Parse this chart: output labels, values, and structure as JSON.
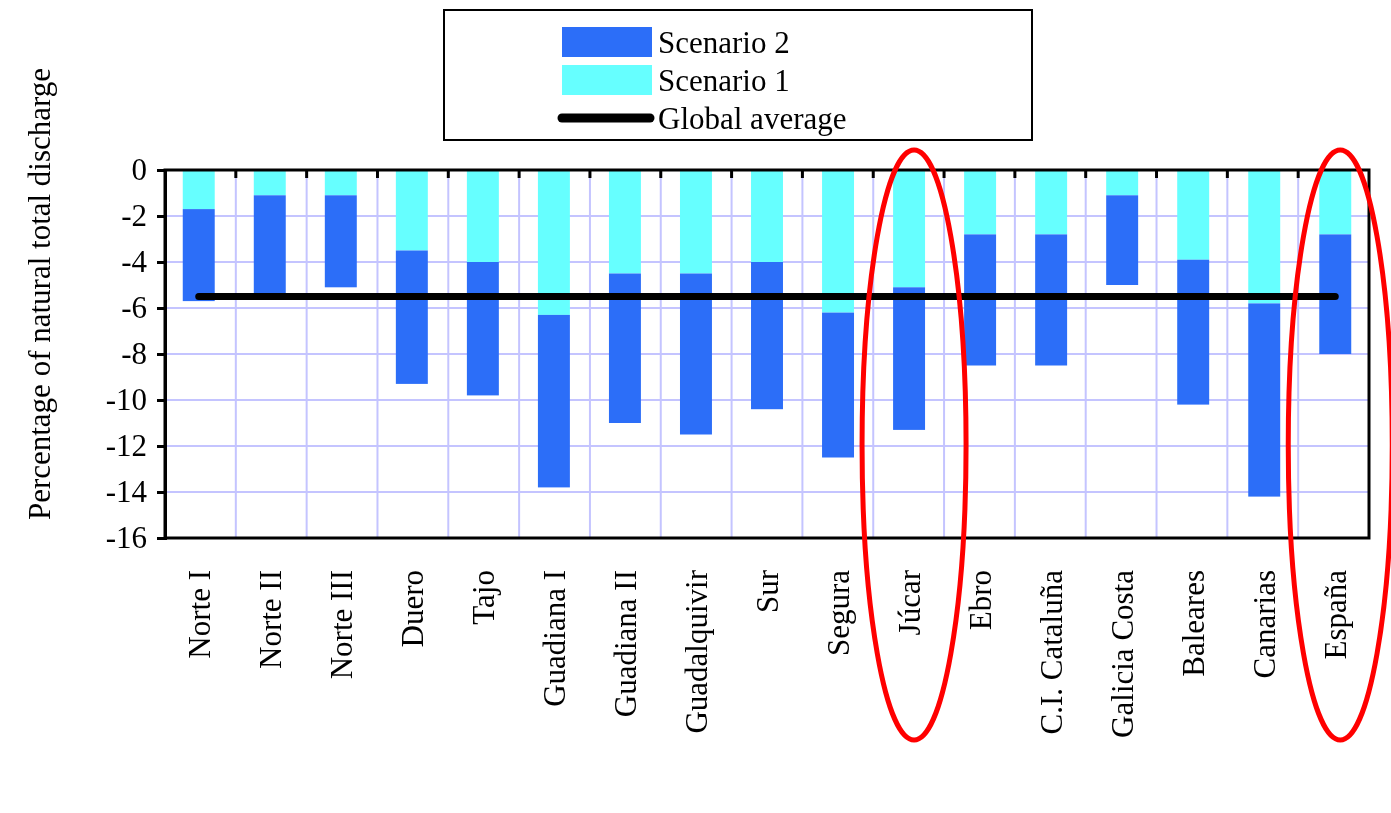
{
  "chart_data": {
    "type": "bar",
    "ylabel": "Percentage of natural total discharge",
    "categories": [
      "Norte I",
      "Norte II",
      "Norte III",
      "Duero",
      "Tajo",
      "Guadiana I",
      "Guadiana II",
      "Guadalquivir",
      "Sur",
      "Segura",
      "Júcar",
      "Ebro",
      "C.I. Cataluña",
      "Galicia Costa",
      "Baleares",
      "Canarias",
      "España"
    ],
    "stacked": true,
    "series": [
      {
        "name": "Scenario 1",
        "color": "#66ffff",
        "values": [
          -1.7,
          -1.1,
          -1.1,
          -3.5,
          -4.0,
          -6.3,
          -4.5,
          -4.5,
          -4.0,
          -6.2,
          -5.1,
          -2.8,
          -2.8,
          -1.1,
          -3.9,
          -5.8,
          -2.8
        ]
      },
      {
        "name": "Scenario 2",
        "color": "#2c6ef8",
        "values": [
          -4.0,
          -4.3,
          -4.0,
          -5.8,
          -5.8,
          -7.5,
          -6.5,
          -7.0,
          -6.4,
          -6.3,
          -6.2,
          -5.7,
          -5.7,
          -3.9,
          -6.3,
          -8.4,
          -5.2
        ]
      },
      {
        "name": "Global average",
        "type": "line",
        "color": "#000000",
        "values": [
          -5.5,
          -5.5,
          -5.5,
          -5.5,
          -5.5,
          -5.5,
          -5.5,
          -5.5,
          -5.5,
          -5.5,
          -5.5,
          -5.5,
          -5.5,
          -5.5,
          -5.5,
          -5.5,
          -5.5
        ]
      }
    ],
    "ylim": [
      -16,
      0
    ],
    "yticks": [
      0,
      -2,
      -4,
      -6,
      -8,
      -10,
      -12,
      -14,
      -16
    ],
    "grid": true,
    "legend": "top",
    "marker": "none",
    "line_style": "solid"
  }
}
